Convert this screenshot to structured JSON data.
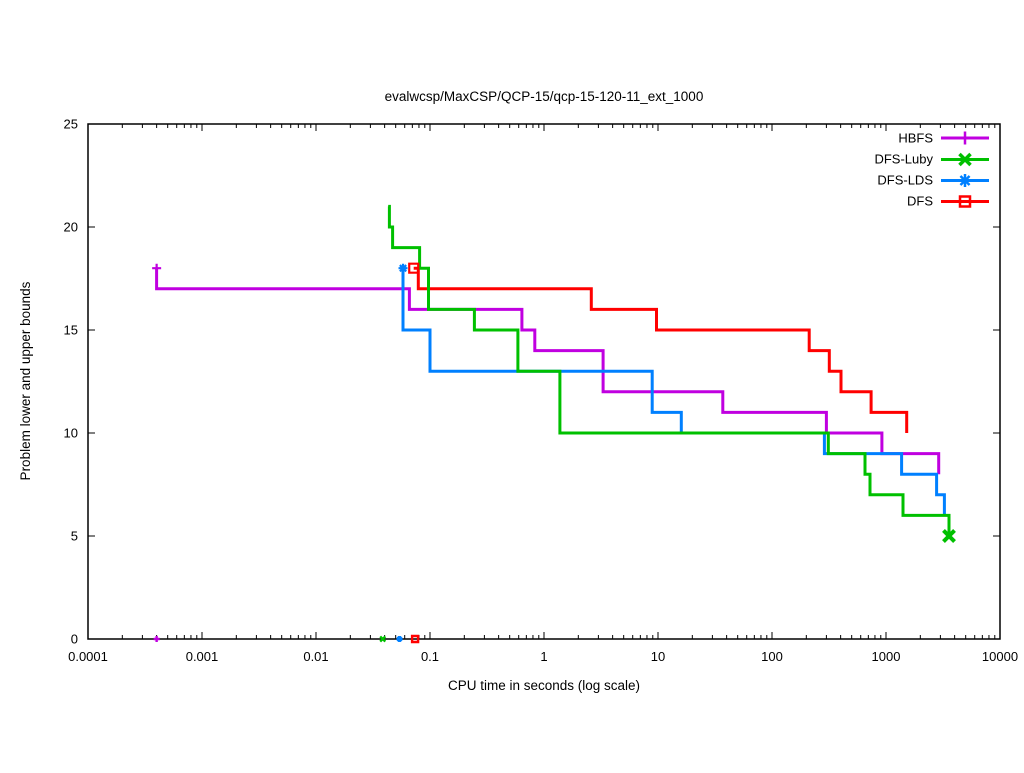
{
  "title": "evalwcsp/MaxCSP/QCP-15/qcp-15-120-11_ext_1000",
  "chart_data": {
    "type": "line",
    "subtype": "step-upper-bounds",
    "title": "evalwcsp/MaxCSP/QCP-15/qcp-15-120-11_ext_1000",
    "xlabel": "CPU time in seconds (log scale)",
    "ylabel": "Problem lower and upper bounds",
    "x_scale": "log",
    "xlim": [
      0.0001,
      10000
    ],
    "ylim": [
      0,
      25
    ],
    "x_ticks": [
      "0.0001",
      "0.001",
      "0.01",
      "0.1",
      "1",
      "10",
      "100",
      "1000",
      "10000"
    ],
    "y_ticks": [
      "0",
      "5",
      "10",
      "15",
      "20",
      "25"
    ],
    "grid": "off",
    "legend_position": "top-right-inside",
    "series": [
      {
        "name": "HBFS",
        "color": "#C000E0",
        "marker": "plus",
        "marker_at": "start",
        "points": [
          [
            0.0004,
            18
          ],
          [
            0.0004,
            17
          ],
          [
            0.066,
            16
          ],
          [
            0.64,
            15
          ],
          [
            0.83,
            14
          ],
          [
            3.3,
            12
          ],
          [
            37,
            11
          ],
          [
            300,
            10
          ],
          [
            920,
            9
          ],
          [
            2900,
            8
          ]
        ]
      },
      {
        "name": "DFS-Luby",
        "color": "#00C000",
        "marker": "x",
        "marker_at": "end",
        "points": [
          [
            0.043,
            21
          ],
          [
            0.044,
            20
          ],
          [
            0.047,
            19
          ],
          [
            0.081,
            18
          ],
          [
            0.097,
            16
          ],
          [
            0.245,
            15
          ],
          [
            0.59,
            13
          ],
          [
            1.38,
            10
          ],
          [
            312,
            9
          ],
          [
            654,
            8
          ],
          [
            724,
            7
          ],
          [
            1410,
            6
          ],
          [
            3570,
            5
          ]
        ]
      },
      {
        "name": "DFS-LDS",
        "color": "#0080FF",
        "marker": "asterisk",
        "marker_at": "start",
        "points": [
          [
            0.058,
            18
          ],
          [
            0.058,
            15
          ],
          [
            0.1,
            13
          ],
          [
            8.9,
            11
          ],
          [
            16,
            10
          ],
          [
            288,
            9
          ],
          [
            1370,
            8
          ],
          [
            2780,
            7
          ],
          [
            3250,
            6
          ]
        ]
      },
      {
        "name": "DFS",
        "color": "#FF0000",
        "marker": "square",
        "marker_at": "start",
        "points": [
          [
            0.072,
            18
          ],
          [
            0.079,
            17
          ],
          [
            2.6,
            16
          ],
          [
            9.7,
            15
          ],
          [
            212,
            14
          ],
          [
            318,
            13
          ],
          [
            403,
            12
          ],
          [
            740,
            11
          ],
          [
            1520,
            10
          ]
        ]
      }
    ],
    "lower_bound_marks": [
      {
        "series": "HBFS",
        "x": 0.0004,
        "y": 0
      },
      {
        "series": "DFS-Luby",
        "x": 0.0385,
        "y": 0
      },
      {
        "series": "DFS-LDS",
        "x": 0.054,
        "y": 0
      },
      {
        "series": "DFS",
        "x": 0.074,
        "y": 0
      }
    ]
  }
}
